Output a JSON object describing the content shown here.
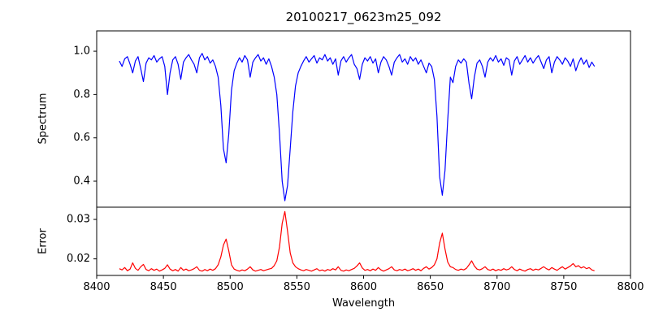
{
  "title": "20100217_0623m25_092",
  "x_axis": {
    "label": "Wavelength",
    "ticks": [
      8400,
      8450,
      8500,
      8550,
      8600,
      8650,
      8700,
      8750,
      8800
    ],
    "tick_labels": [
      "8400",
      "8450",
      "8500",
      "8550",
      "8600",
      "8650",
      "8700",
      "8750",
      "8800"
    ],
    "xlim": [
      8400,
      8800
    ]
  },
  "colors": {
    "axis": "#000000",
    "spectrum_line": "#0000ff",
    "error_line": "#ff0000"
  },
  "chart_data": [
    {
      "type": "line",
      "name": "spectrum",
      "ylabel": "Spectrum",
      "color": "#0000ff",
      "xlim": [
        8400,
        8800
      ],
      "ylim": [
        0.28,
        1.094
      ],
      "yticks": [
        0.4,
        0.6,
        0.8,
        1.0
      ],
      "ytick_labels": [
        "0.4",
        "0.6",
        "0.8",
        "1.0"
      ],
      "grid": false,
      "legend": "none",
      "x_start": 8417,
      "x_step": 2,
      "y": [
        0.955,
        0.93,
        0.965,
        0.975,
        0.94,
        0.9,
        0.955,
        0.975,
        0.92,
        0.86,
        0.945,
        0.97,
        0.96,
        0.98,
        0.95,
        0.965,
        0.975,
        0.93,
        0.8,
        0.9,
        0.96,
        0.975,
        0.94,
        0.87,
        0.95,
        0.97,
        0.985,
        0.96,
        0.94,
        0.9,
        0.97,
        0.99,
        0.96,
        0.975,
        0.945,
        0.96,
        0.93,
        0.88,
        0.75,
        0.55,
        0.485,
        0.62,
        0.82,
        0.91,
        0.945,
        0.97,
        0.95,
        0.98,
        0.96,
        0.88,
        0.95,
        0.97,
        0.985,
        0.955,
        0.97,
        0.94,
        0.965,
        0.93,
        0.88,
        0.8,
        0.62,
        0.4,
        0.31,
        0.38,
        0.55,
        0.72,
        0.84,
        0.9,
        0.93,
        0.955,
        0.975,
        0.95,
        0.965,
        0.98,
        0.945,
        0.97,
        0.96,
        0.985,
        0.955,
        0.97,
        0.94,
        0.965,
        0.89,
        0.955,
        0.975,
        0.95,
        0.97,
        0.985,
        0.94,
        0.92,
        0.87,
        0.94,
        0.97,
        0.955,
        0.975,
        0.945,
        0.965,
        0.9,
        0.95,
        0.975,
        0.96,
        0.93,
        0.89,
        0.95,
        0.97,
        0.985,
        0.95,
        0.965,
        0.94,
        0.975,
        0.955,
        0.97,
        0.94,
        0.96,
        0.93,
        0.9,
        0.945,
        0.93,
        0.87,
        0.7,
        0.42,
        0.335,
        0.45,
        0.68,
        0.88,
        0.855,
        0.93,
        0.96,
        0.945,
        0.965,
        0.95,
        0.85,
        0.78,
        0.88,
        0.945,
        0.96,
        0.93,
        0.88,
        0.95,
        0.97,
        0.955,
        0.98,
        0.95,
        0.965,
        0.935,
        0.97,
        0.96,
        0.89,
        0.955,
        0.975,
        0.94,
        0.96,
        0.98,
        0.95,
        0.97,
        0.945,
        0.965,
        0.98,
        0.95,
        0.92,
        0.96,
        0.975,
        0.9,
        0.95,
        0.975,
        0.96,
        0.94,
        0.97,
        0.955,
        0.93,
        0.965,
        0.91,
        0.945,
        0.97,
        0.94,
        0.96,
        0.925,
        0.95,
        0.93
      ]
    },
    {
      "type": "line",
      "name": "error",
      "ylabel": "Error",
      "color": "#ff0000",
      "xlim": [
        8400,
        8800
      ],
      "ylim": [
        0.0158,
        0.0331
      ],
      "yticks": [
        0.02,
        0.03
      ],
      "ytick_labels": [
        "0.02",
        "0.03"
      ],
      "grid": false,
      "legend": "none",
      "x_start": 8417,
      "x_step": 2,
      "y": [
        0.0175,
        0.0172,
        0.0178,
        0.017,
        0.0174,
        0.019,
        0.0176,
        0.0171,
        0.018,
        0.0186,
        0.0173,
        0.017,
        0.0175,
        0.0171,
        0.0174,
        0.0169,
        0.0172,
        0.0176,
        0.0185,
        0.0174,
        0.017,
        0.0173,
        0.0169,
        0.0178,
        0.0171,
        0.0174,
        0.017,
        0.0172,
        0.0175,
        0.018,
        0.0171,
        0.0169,
        0.0173,
        0.017,
        0.0174,
        0.0171,
        0.0175,
        0.0185,
        0.0205,
        0.0235,
        0.025,
        0.022,
        0.0185,
        0.0174,
        0.0171,
        0.0169,
        0.0172,
        0.017,
        0.0174,
        0.018,
        0.0172,
        0.0169,
        0.0171,
        0.0173,
        0.017,
        0.0172,
        0.0174,
        0.0176,
        0.0183,
        0.0195,
        0.023,
        0.029,
        0.032,
        0.027,
        0.0215,
        0.019,
        0.018,
        0.0175,
        0.0172,
        0.017,
        0.0173,
        0.0171,
        0.0169,
        0.0172,
        0.0175,
        0.017,
        0.0172,
        0.0169,
        0.0173,
        0.0171,
        0.0175,
        0.0172,
        0.018,
        0.0171,
        0.0169,
        0.0172,
        0.017,
        0.0173,
        0.0176,
        0.0182,
        0.019,
        0.0177,
        0.0171,
        0.0173,
        0.017,
        0.0174,
        0.0171,
        0.0178,
        0.0172,
        0.0169,
        0.0172,
        0.0175,
        0.018,
        0.0172,
        0.017,
        0.0173,
        0.0171,
        0.0174,
        0.017,
        0.0172,
        0.0175,
        0.0171,
        0.0174,
        0.017,
        0.0176,
        0.018,
        0.0174,
        0.0178,
        0.0185,
        0.02,
        0.024,
        0.0265,
        0.0225,
        0.0192,
        0.018,
        0.0178,
        0.0173,
        0.0171,
        0.0174,
        0.0172,
        0.0176,
        0.0185,
        0.0195,
        0.0182,
        0.0174,
        0.0172,
        0.0175,
        0.018,
        0.0173,
        0.0171,
        0.0174,
        0.017,
        0.0173,
        0.0171,
        0.0175,
        0.0172,
        0.0174,
        0.018,
        0.0173,
        0.017,
        0.0174,
        0.0171,
        0.0169,
        0.0173,
        0.0175,
        0.0171,
        0.0174,
        0.0172,
        0.0176,
        0.018,
        0.0175,
        0.0172,
        0.0178,
        0.0174,
        0.0171,
        0.0176,
        0.018,
        0.0174,
        0.0178,
        0.0182,
        0.0188,
        0.018,
        0.0183,
        0.0177,
        0.018,
        0.0175,
        0.0178,
        0.0172,
        0.017
      ]
    }
  ]
}
